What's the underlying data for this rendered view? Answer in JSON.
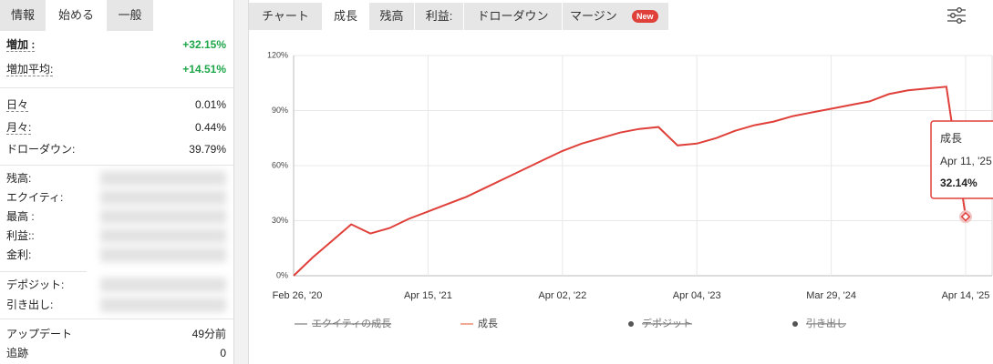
{
  "left_tabs": [
    "情報",
    "始める",
    "一般"
  ],
  "stats": [
    {
      "label": "増加 :",
      "value": "+32.15%"
    },
    {
      "label": "増加平均:",
      "value": "+14.51%"
    },
    {
      "label": "日々",
      "value": "0.01%"
    },
    {
      "label": "月々:",
      "value": "0.44%"
    },
    {
      "label": "ドローダウン:",
      "value": "39.79%"
    },
    {
      "label": "残高:"
    },
    {
      "label": "エクイティ:"
    },
    {
      "label": "最高 :"
    },
    {
      "label": "利益::"
    },
    {
      "label": "金利:"
    },
    {
      "label": "デポジット:"
    },
    {
      "label": "引き出し:"
    },
    {
      "label": "アップデート",
      "value": "49分前"
    },
    {
      "label": "追跡",
      "value": "0"
    }
  ],
  "chart_tabs": [
    "チャート",
    "成長",
    "残高",
    "利益:",
    "ドローダウン",
    "マージン"
  ],
  "badge": "New",
  "tooltip": {
    "title": "成長",
    "date": "Apr 11, '25",
    "value": "32.14%"
  },
  "chart_data": {
    "type": "line",
    "categories": [
      "Feb 26, '20",
      null,
      null,
      null,
      null,
      null,
      null,
      "Apr 15, '21",
      null,
      null,
      null,
      null,
      null,
      null,
      "Apr 02, '22",
      null,
      null,
      null,
      null,
      null,
      null,
      "Apr 04, '23",
      null,
      null,
      null,
      null,
      null,
      null,
      "Mar 29, '24",
      null,
      null,
      null,
      null,
      null,
      null,
      "Apr 14, '25"
    ],
    "series": [
      {
        "name": "成長",
        "color": "#e0403a",
        "values": [
          0,
          10,
          19,
          28,
          23,
          26,
          31,
          35,
          39,
          43,
          48,
          53,
          58,
          63,
          68,
          72,
          75,
          78,
          80,
          81,
          71,
          72,
          75,
          79,
          82,
          84,
          87,
          89,
          91,
          93,
          95,
          99,
          101,
          102,
          103,
          32.14
        ]
      }
    ],
    "legend_items": [
      {
        "name": "エクイティの成長",
        "color": "#999999",
        "hidden": true,
        "symbol": "line"
      },
      {
        "name": "成長",
        "color": "#f08a70",
        "hidden": false,
        "symbol": "line"
      },
      {
        "name": "デポジット",
        "color": "#555555",
        "hidden": true,
        "symbol": "dot"
      },
      {
        "name": "引き出し",
        "color": "#555555",
        "hidden": true,
        "symbol": "dot"
      }
    ],
    "ylim": [
      0,
      120
    ],
    "yticks": [
      {
        "value": 0,
        "label": "0%"
      },
      {
        "value": 30,
        "label": "30%"
      },
      {
        "value": 60,
        "label": "60%"
      },
      {
        "value": 90,
        "label": "90%"
      },
      {
        "value": 120,
        "label": "120%"
      }
    ],
    "grid": true
  }
}
